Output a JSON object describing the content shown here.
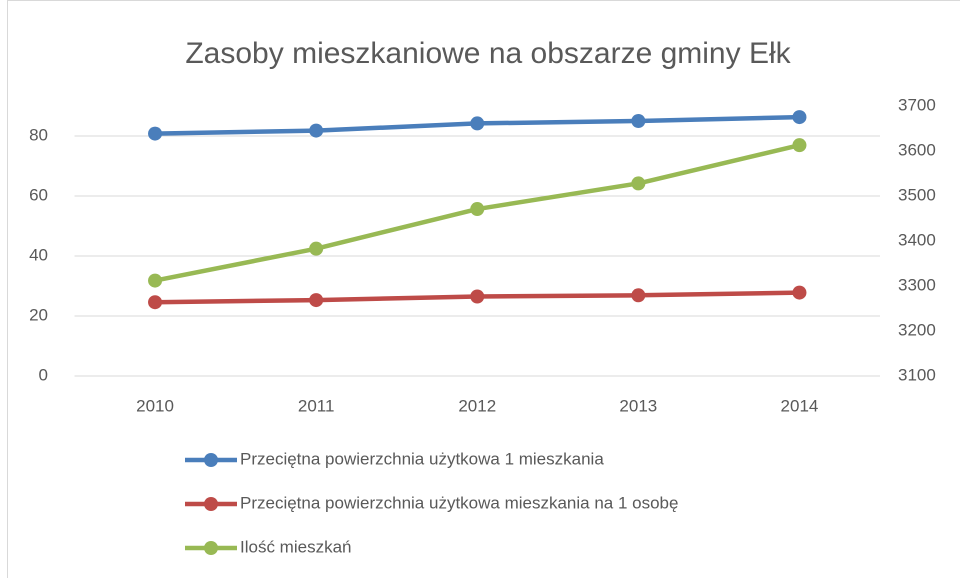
{
  "chart_data": {
    "type": "line",
    "title": "Zasoby mieszkaniowe na obszarze gminy Ełk",
    "categories": [
      "2010",
      "2011",
      "2012",
      "2013",
      "2014"
    ],
    "series": [
      {
        "name": "Przeciętna powierzchnia użytkowa 1 mieszkania",
        "color": "#4a7ebb",
        "values": [
          80.8,
          81.8,
          84.2,
          85.0,
          86.3
        ]
      },
      {
        "name": "Przeciętna powierzchnia użytkowa mieszkania na 1 osobę",
        "color": "#be4b48",
        "values": [
          24.6,
          25.3,
          26.5,
          26.9,
          27.8
        ]
      },
      {
        "name": "Ilość mieszkań",
        "color": "#98b954",
        "values": [
          3312,
          3383,
          3471,
          3528,
          3613
        ],
        "axis": "y2"
      }
    ],
    "ylim": [
      0,
      90
    ],
    "yticks": [
      0,
      20,
      40,
      60,
      80
    ],
    "y2lim": [
      3100,
      3700
    ],
    "y2ticks": [
      3100,
      3200,
      3300,
      3400,
      3500,
      3600,
      3700
    ],
    "grid": true,
    "legend": "bottom"
  }
}
